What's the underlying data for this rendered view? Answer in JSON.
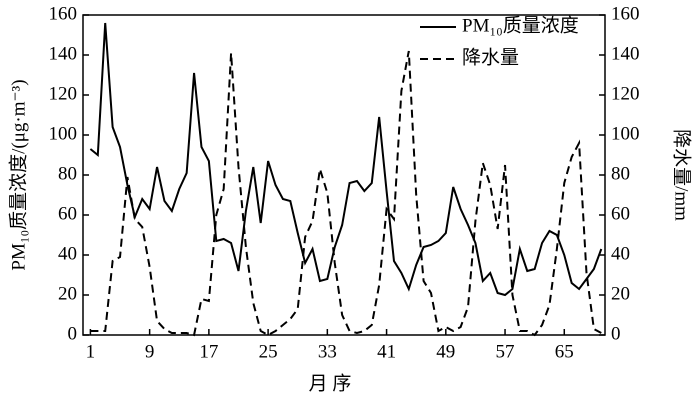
{
  "chart_data": {
    "type": "line",
    "x_label": "月 序",
    "y_label": "PM₁₀质量浓度/(μg·m⁻³)",
    "y2_label": "降水量/mm",
    "x": [
      1,
      2,
      3,
      4,
      5,
      6,
      7,
      8,
      9,
      10,
      11,
      12,
      13,
      14,
      15,
      16,
      17,
      18,
      19,
      20,
      21,
      22,
      23,
      24,
      25,
      26,
      27,
      28,
      29,
      30,
      31,
      32,
      33,
      34,
      35,
      36,
      37,
      38,
      39,
      40,
      41,
      42,
      43,
      44,
      45,
      46,
      47,
      48,
      49,
      50,
      51,
      52,
      53,
      54,
      55,
      56,
      57,
      58,
      59,
      60,
      61,
      62,
      63,
      64,
      65,
      66,
      67,
      68,
      69,
      70
    ],
    "xlim": [
      0,
      70.5
    ],
    "xticks": [
      1,
      9,
      17,
      25,
      33,
      41,
      49,
      57,
      65
    ],
    "ylim": [
      0,
      160
    ],
    "yticks": [
      0,
      20,
      40,
      60,
      80,
      100,
      120,
      140,
      160
    ],
    "y2lim": [
      0,
      160
    ],
    "y2ticks": [
      0,
      20,
      40,
      60,
      80,
      100,
      120,
      140,
      160
    ],
    "legend": "upper right",
    "series": [
      {
        "name": "PM₁₀质量浓度",
        "color": "#000000",
        "dash": "solid",
        "values": [
          93,
          90,
          156,
          104,
          94,
          75,
          59,
          68,
          63,
          84,
          67,
          62,
          73,
          81,
          131,
          94,
          87,
          47,
          48,
          46,
          32,
          62,
          84,
          56,
          87,
          75,
          68,
          67,
          51,
          36,
          43,
          27,
          28,
          44,
          55,
          76,
          77,
          72,
          76,
          109,
          72,
          37,
          31,
          23,
          35,
          44,
          45,
          47,
          51,
          74,
          63,
          55,
          46,
          27,
          31,
          21,
          20,
          23,
          43,
          32,
          33,
          46,
          52,
          50,
          40,
          26,
          23,
          28,
          33,
          43
        ]
      },
      {
        "name": "降水量",
        "color": "#000000",
        "dash": "dashed",
        "axis": "y2",
        "values": [
          2,
          2,
          2,
          37,
          39,
          79,
          58,
          54,
          34,
          7,
          3,
          1,
          1,
          1,
          0,
          18,
          17,
          60,
          73,
          141,
          84,
          44,
          16,
          2,
          0,
          2,
          5,
          8,
          13,
          49,
          57,
          83,
          71,
          36,
          10,
          2,
          1,
          2,
          5,
          25,
          63,
          58,
          122,
          142,
          70,
          27,
          21,
          2,
          4,
          2,
          4,
          14,
          57,
          86,
          75,
          53,
          85,
          20,
          2,
          2,
          0,
          5,
          15,
          43,
          76,
          89,
          96,
          31,
          3,
          1
        ]
      }
    ]
  }
}
